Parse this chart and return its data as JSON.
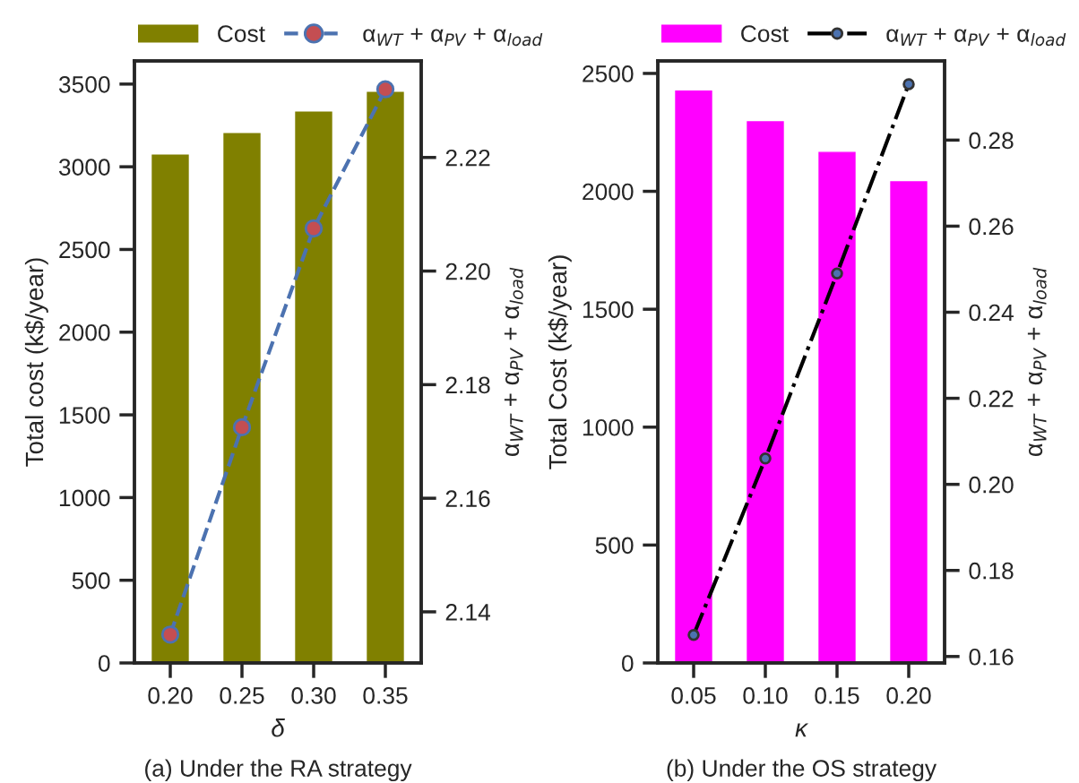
{
  "chart_data": [
    {
      "type": "bar",
      "xlabel": "δ",
      "ylabel": "Total cost (k$/year)",
      "y2label": "α$_{WT}$ + α$_{PV}$ + α$_{load}$",
      "annotations": [
        "(a) Under the RA strategy"
      ],
      "categories": [
        "0.20",
        "0.25",
        "0.30",
        "0.35"
      ],
      "series": [
        {
          "name": "Cost",
          "color": "#808000",
          "values": [
            3070,
            3200,
            3330,
            3450
          ]
        },
        {
          "name": "α$_{WT}$ + α$_{PV}$ + α$_{load}$",
          "type": "line",
          "axis": "y2",
          "color": "#4c72b0",
          "colors": [
            "#c44e52",
            "#c44e52",
            "#c44e52",
            "#c44e52"
          ],
          "marker": "circle",
          "line_style": "dashed",
          "values": [
            2.136,
            2.1725,
            2.2075,
            2.232
          ]
        }
      ],
      "ylim": [
        0,
        3640
      ],
      "yticks": [
        0,
        500,
        1000,
        1500,
        2000,
        2500,
        3000,
        3500
      ],
      "y2lim": [
        2.131,
        2.237
      ],
      "y2ticks": [
        2.14,
        2.16,
        2.18,
        {
          "value": 2.2,
          "label": "2.20"
        },
        2.22
      ],
      "grid": false,
      "legend": "top"
    },
    {
      "type": "bar",
      "xlabel": "κ",
      "ylabel": "Total Cost (k$/year)",
      "y2label": "α$_{WT}$ + α$_{PV}$ + α$_{load}$",
      "annotations": [
        "(b) Under the OS strategy"
      ],
      "categories": [
        "0.05",
        "0.10",
        "0.15",
        "0.20"
      ],
      "series": [
        {
          "name": "Cost",
          "color": "#ff00ff",
          "values": [
            2425,
            2295,
            2165,
            2040
          ]
        },
        {
          "name": "α$_{WT}$ + α$_{PV}$ + α$_{load}$",
          "type": "line",
          "axis": "y2",
          "color": "#000000",
          "colors": [
            "#4c72b0",
            "#4c72b0",
            "#4c72b0",
            "#4c72b0"
          ],
          "marker": "circle",
          "line_style": "dashdot",
          "values": [
            0.165,
            0.206,
            0.249,
            0.293
          ]
        }
      ],
      "ylim": [
        0,
        2553
      ],
      "yticks": [
        0,
        500,
        1000,
        1500,
        2000,
        2500
      ],
      "y2lim": [
        0.1585,
        0.2984
      ],
      "y2ticks": [
        0.16,
        0.18,
        {
          "value": 0.2,
          "label": "0.20"
        },
        0.22,
        0.24,
        0.26,
        0.28
      ],
      "grid": false,
      "legend": "top"
    }
  ]
}
